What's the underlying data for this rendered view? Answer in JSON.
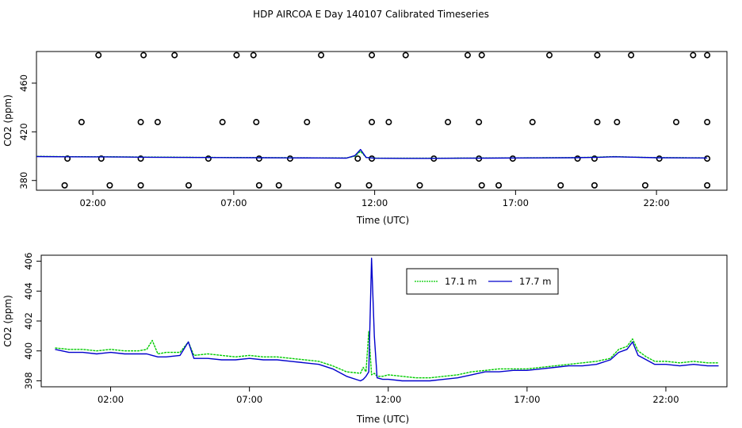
{
  "title": "HDP AIRCOA E  Day 140107  Calibrated Timeseries",
  "chart_data": [
    {
      "type": "scatter",
      "xlabel": "Time (UTC)",
      "ylabel": "CO2 (ppm)",
      "xlim": [
        0.0,
        24.5
      ],
      "ylim": [
        372,
        486
      ],
      "x_ticks": [
        {
          "v": 2.0,
          "label": "02:00"
        },
        {
          "v": 7.0,
          "label": "07:00"
        },
        {
          "v": 12.0,
          "label": "12:00"
        },
        {
          "v": 17.0,
          "label": "17:00"
        },
        {
          "v": 22.0,
          "label": "22:00"
        }
      ],
      "y_ticks": [
        {
          "v": 380,
          "label": "380"
        },
        {
          "v": 420,
          "label": "420"
        },
        {
          "v": 460,
          "label": "460"
        }
      ],
      "circle_levels": [
        376,
        398,
        428,
        483
      ],
      "circles": [
        [
          1.0,
          376
        ],
        [
          2.6,
          376
        ],
        [
          3.7,
          376
        ],
        [
          5.4,
          376
        ],
        [
          7.9,
          376
        ],
        [
          8.6,
          376
        ],
        [
          10.7,
          376
        ],
        [
          11.8,
          376
        ],
        [
          13.6,
          376
        ],
        [
          15.8,
          376
        ],
        [
          16.4,
          376
        ],
        [
          18.6,
          376
        ],
        [
          19.8,
          376
        ],
        [
          21.6,
          376
        ],
        [
          23.8,
          376
        ],
        [
          1.1,
          398
        ],
        [
          2.3,
          398
        ],
        [
          3.7,
          398
        ],
        [
          6.1,
          398
        ],
        [
          7.9,
          398
        ],
        [
          9.0,
          398
        ],
        [
          11.4,
          398
        ],
        [
          11.9,
          398
        ],
        [
          14.1,
          398
        ],
        [
          15.7,
          398
        ],
        [
          16.9,
          398
        ],
        [
          19.2,
          398
        ],
        [
          19.8,
          398
        ],
        [
          22.1,
          398
        ],
        [
          23.8,
          398
        ],
        [
          1.6,
          428
        ],
        [
          3.7,
          428
        ],
        [
          4.3,
          428
        ],
        [
          6.6,
          428
        ],
        [
          7.8,
          428
        ],
        [
          9.6,
          428
        ],
        [
          11.9,
          428
        ],
        [
          12.5,
          428
        ],
        [
          14.6,
          428
        ],
        [
          15.7,
          428
        ],
        [
          17.6,
          428
        ],
        [
          19.9,
          428
        ],
        [
          20.6,
          428
        ],
        [
          22.7,
          428
        ],
        [
          23.8,
          428
        ],
        [
          2.2,
          483
        ],
        [
          3.8,
          483
        ],
        [
          4.9,
          483
        ],
        [
          7.1,
          483
        ],
        [
          7.7,
          483
        ],
        [
          10.1,
          483
        ],
        [
          11.9,
          483
        ],
        [
          13.1,
          483
        ],
        [
          15.3,
          483
        ],
        [
          15.8,
          483
        ],
        [
          18.2,
          483
        ],
        [
          19.9,
          483
        ],
        [
          21.1,
          483
        ],
        [
          23.3,
          483
        ],
        [
          23.8,
          483
        ]
      ],
      "series": [
        {
          "name": "17.1 m",
          "color": "#00cc00",
          "x": [
            0.0,
            1.0,
            2.0,
            3.0,
            4.0,
            5.0,
            6.0,
            7.0,
            8.0,
            9.0,
            10.0,
            11.0,
            11.3,
            11.5,
            11.7,
            12.0,
            13.0,
            14.0,
            15.0,
            16.0,
            17.0,
            18.0,
            19.0,
            20.0,
            20.5,
            21.0,
            22.0,
            23.0,
            23.8
          ],
          "y": [
            399.8,
            399.6,
            399.5,
            399.4,
            399.2,
            399.1,
            399.0,
            398.9,
            398.8,
            398.7,
            398.6,
            398.5,
            400.0,
            404.0,
            399.0,
            398.4,
            398.3,
            398.3,
            398.4,
            398.5,
            398.6,
            398.7,
            398.8,
            399.2,
            399.6,
            399.3,
            398.8,
            398.7,
            398.6
          ]
        },
        {
          "name": "17.7 m",
          "color": "#0000cc",
          "x": [
            0.0,
            1.0,
            2.0,
            3.0,
            4.0,
            5.0,
            6.0,
            7.0,
            8.0,
            9.0,
            10.0,
            11.0,
            11.3,
            11.5,
            11.7,
            12.0,
            13.0,
            14.0,
            15.0,
            16.0,
            17.0,
            18.0,
            19.0,
            20.0,
            20.5,
            21.0,
            22.0,
            23.0,
            23.8
          ],
          "y": [
            399.7,
            399.5,
            399.4,
            399.3,
            399.1,
            399.0,
            398.9,
            398.8,
            398.7,
            398.6,
            398.5,
            398.4,
            400.5,
            405.5,
            398.9,
            398.3,
            398.2,
            398.2,
            398.3,
            398.4,
            398.5,
            398.6,
            398.7,
            399.1,
            399.5,
            399.2,
            398.7,
            398.6,
            398.5
          ]
        }
      ]
    },
    {
      "type": "line",
      "xlabel": "Time (UTC)",
      "ylabel": "CO2 (ppm)",
      "xlim": [
        -0.5,
        24.2
      ],
      "ylim": [
        397.6,
        406.4
      ],
      "legend_position": "top-center",
      "x_ticks": [
        {
          "v": 2.0,
          "label": "02:00"
        },
        {
          "v": 7.0,
          "label": "07:00"
        },
        {
          "v": 12.0,
          "label": "12:00"
        },
        {
          "v": 17.0,
          "label": "17:00"
        },
        {
          "v": 22.0,
          "label": "22:00"
        }
      ],
      "y_ticks": [
        {
          "v": 398,
          "label": "398"
        },
        {
          "v": 400,
          "label": "400"
        },
        {
          "v": 402,
          "label": "402"
        },
        {
          "v": 404,
          "label": "404"
        },
        {
          "v": 406,
          "label": "406"
        }
      ],
      "series": [
        {
          "name": "17.1 m",
          "color": "#00cc00",
          "x": [
            0.0,
            0.5,
            1.0,
            1.5,
            2.0,
            2.5,
            3.0,
            3.3,
            3.5,
            3.7,
            4.0,
            4.5,
            4.8,
            5.0,
            5.5,
            6.0,
            6.5,
            7.0,
            7.5,
            8.0,
            8.5,
            9.0,
            9.5,
            10.0,
            10.5,
            11.0,
            11.1,
            11.2,
            11.3,
            11.4,
            11.5,
            11.6,
            11.8,
            12.0,
            12.5,
            13.0,
            13.5,
            14.0,
            14.5,
            15.0,
            15.5,
            16.0,
            16.5,
            17.0,
            17.5,
            18.0,
            18.5,
            19.0,
            19.5,
            20.0,
            20.3,
            20.6,
            20.8,
            21.0,
            21.3,
            21.6,
            22.0,
            22.5,
            23.0,
            23.5,
            23.9
          ],
          "y": [
            400.2,
            400.1,
            400.1,
            400.0,
            400.1,
            400.0,
            400.0,
            400.1,
            400.7,
            399.8,
            399.9,
            399.9,
            400.6,
            399.7,
            399.8,
            399.7,
            399.6,
            399.7,
            399.6,
            399.6,
            399.5,
            399.4,
            399.3,
            399.0,
            398.6,
            398.5,
            398.9,
            398.6,
            401.3,
            398.4,
            398.5,
            398.3,
            398.3,
            398.4,
            398.3,
            398.2,
            398.2,
            398.3,
            398.4,
            398.6,
            398.7,
            398.8,
            398.8,
            398.8,
            398.9,
            399.0,
            399.1,
            399.2,
            399.3,
            399.5,
            400.1,
            400.3,
            400.8,
            400.0,
            399.6,
            399.3,
            399.3,
            399.2,
            399.3,
            399.2,
            399.2
          ]
        },
        {
          "name": "17.7 m",
          "color": "#0000cc",
          "x": [
            0.0,
            0.5,
            1.0,
            1.5,
            2.0,
            2.5,
            3.0,
            3.3,
            3.5,
            3.7,
            4.0,
            4.5,
            4.8,
            5.0,
            5.5,
            6.0,
            6.5,
            7.0,
            7.5,
            8.0,
            8.5,
            9.0,
            9.5,
            10.0,
            10.5,
            11.0,
            11.1,
            11.2,
            11.3,
            11.4,
            11.5,
            11.6,
            11.8,
            12.0,
            12.5,
            13.0,
            13.5,
            14.0,
            14.5,
            15.0,
            15.5,
            16.0,
            16.5,
            17.0,
            17.5,
            18.0,
            18.5,
            19.0,
            19.5,
            20.0,
            20.3,
            20.6,
            20.8,
            21.0,
            21.3,
            21.6,
            22.0,
            22.5,
            23.0,
            23.5,
            23.9
          ],
          "y": [
            400.1,
            399.9,
            399.9,
            399.8,
            399.9,
            399.8,
            399.8,
            399.8,
            399.7,
            399.6,
            399.6,
            399.7,
            400.6,
            399.5,
            399.5,
            399.4,
            399.4,
            399.5,
            399.4,
            399.4,
            399.3,
            399.2,
            399.1,
            398.8,
            398.3,
            398.0,
            398.1,
            398.3,
            398.6,
            406.2,
            401.0,
            398.2,
            398.1,
            398.1,
            398.0,
            398.0,
            398.0,
            398.1,
            398.2,
            398.4,
            398.6,
            398.6,
            398.7,
            398.7,
            398.8,
            398.9,
            399.0,
            399.0,
            399.1,
            399.4,
            399.9,
            400.1,
            400.6,
            399.7,
            399.4,
            399.1,
            399.1,
            399.0,
            399.1,
            399.0,
            399.0
          ]
        }
      ]
    }
  ]
}
